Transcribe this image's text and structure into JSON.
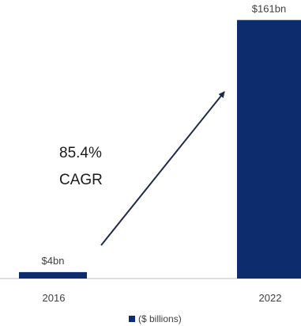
{
  "chart_data": {
    "type": "bar",
    "categories": [
      "2016",
      "2022"
    ],
    "values": [
      4,
      161
    ],
    "value_labels": [
      "$4bn",
      "$161bn"
    ],
    "ylim": [
      0,
      171
    ],
    "grid": false,
    "series": [
      {
        "name": "($ billions)",
        "values": [
          4,
          161
        ]
      }
    ],
    "legend_position": "bottom",
    "annotation": {
      "lines": [
        "85.4%",
        "CAGR"
      ]
    },
    "colors": {
      "bar": "#0d2c6e",
      "baseline": "#bfbfbf",
      "arrow": "#1f2a44"
    }
  }
}
